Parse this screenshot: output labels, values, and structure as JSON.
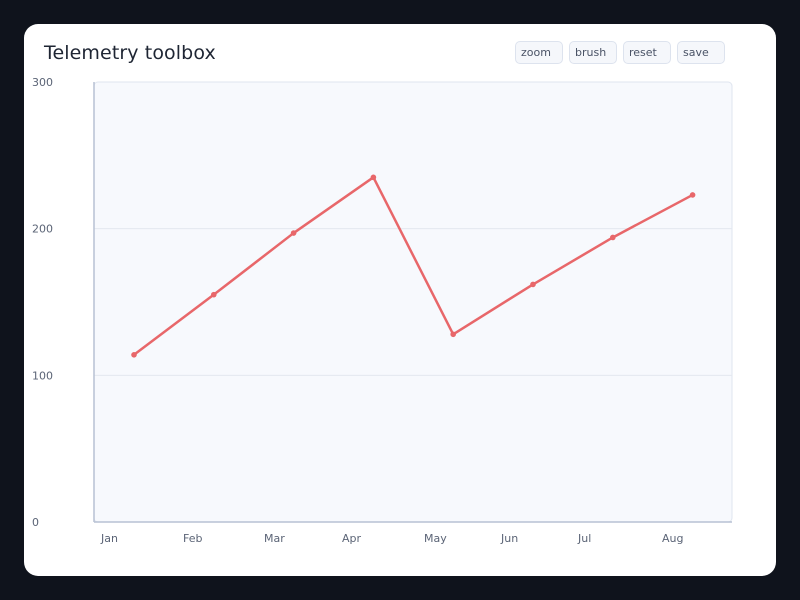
{
  "header": {
    "title": "Telemetry toolbox"
  },
  "toolbar": {
    "buttons": [
      {
        "id": "zoom",
        "label": "zoom"
      },
      {
        "id": "brush",
        "label": "brush"
      },
      {
        "id": "reset",
        "label": "reset"
      },
      {
        "id": "save",
        "label": "save"
      }
    ]
  },
  "colors": {
    "page_background": "#0f131c",
    "card_background": "#ffffff",
    "plot_background": "#f7f9fd",
    "series_line": "#e8676a",
    "axis": "#b7c1d3",
    "grid": "#e4e8ef"
  },
  "chart_data": {
    "type": "line",
    "title": "",
    "xlabel": "",
    "ylabel": "",
    "categories": [
      "Jan",
      "Feb",
      "Mar",
      "Apr",
      "May",
      "Jun",
      "Jul",
      "Aug"
    ],
    "series": [
      {
        "values": [
          114,
          155,
          197,
          235,
          128,
          162,
          194,
          223
        ]
      }
    ],
    "ylim": [
      0,
      300
    ],
    "yticks": [
      0,
      100,
      200,
      300
    ],
    "grid": "horizontal",
    "legend": "none",
    "markers": true
  }
}
